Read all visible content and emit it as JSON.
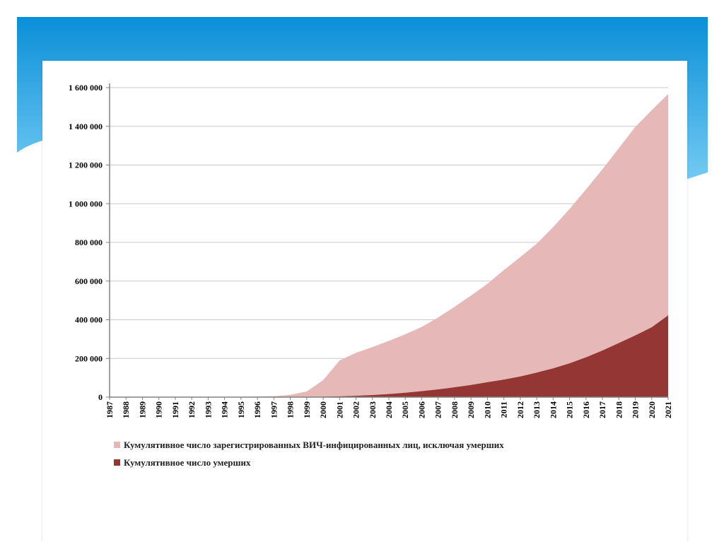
{
  "colors": {
    "banner_top": "#0a8fd8",
    "banner_bottom": "#7ccff5",
    "living": "#e7b8b8",
    "deaths": "#943634",
    "grid": "#c8c8c8",
    "axis": "#808080"
  },
  "chart_data": {
    "type": "area",
    "stacked": true,
    "title": "",
    "xlabel": "",
    "ylabel": "",
    "ylim": [
      0,
      1600000
    ],
    "y_ticks": [
      "0",
      "200 000",
      "400 000",
      "600 000",
      "800 000",
      "1 000 000",
      "1 200 000",
      "1 400 000",
      "1 600 000"
    ],
    "grid": true,
    "legend_position": "bottom",
    "x": [
      "1987",
      "1988",
      "1989",
      "1990",
      "1991",
      "1992",
      "1993",
      "1994",
      "1995",
      "1996",
      "1997",
      "1998",
      "1999",
      "2000",
      "2001",
      "2002",
      "2003",
      "2004",
      "2005",
      "2006",
      "2007",
      "2008",
      "2009",
      "2010",
      "2011",
      "2012",
      "2013",
      "2014",
      "2015",
      "2016",
      "2017",
      "2018",
      "2019",
      "2020",
      "2021"
    ],
    "series": [
      {
        "name": "Кумулятивное число умерших",
        "values": [
          0,
          0,
          0,
          0,
          0,
          0,
          0,
          0,
          0,
          0,
          500,
          1000,
          1500,
          2500,
          4000,
          7000,
          11000,
          16000,
          23000,
          31000,
          40000,
          51000,
          63000,
          77000,
          91000,
          107000,
          127000,
          149000,
          175000,
          206000,
          241000,
          280000,
          319000,
          361000,
          423000
        ]
      },
      {
        "name": "Кумулятивное число зарегистрированных ВИЧ-инфицированных лиц, исключая умерших",
        "values": [
          200,
          400,
          600,
          800,
          1000,
          1200,
          1400,
          1600,
          2000,
          3000,
          4500,
          11000,
          28000,
          85000,
          186000,
          222000,
          248000,
          275000,
          302000,
          332000,
          372000,
          416000,
          462000,
          509000,
          566000,
          617000,
          666000,
          730000,
          798000,
          868000,
          937000,
          1007000,
          1078000,
          1122000,
          1144000
        ]
      }
    ]
  }
}
